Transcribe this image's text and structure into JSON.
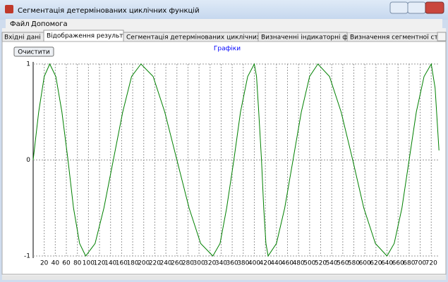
{
  "window": {
    "title": "Сегментація детермінованих циклічних функцій"
  },
  "menu": [
    "Файл",
    "Допомога"
  ],
  "tabs": [
    "Вхідні дані",
    "Відображення результатів",
    "Сегментація детермінованих циклічних функцій",
    "Визначенні індикаторні функції",
    "Визначення сегментної структу"
  ],
  "button": "Очистити",
  "chart_data": {
    "type": "line",
    "title": "Графіки",
    "x": [
      0,
      10,
      20,
      30,
      41,
      52,
      63,
      73,
      84,
      95,
      112,
      128,
      145,
      162,
      178,
      195,
      217,
      238,
      260,
      282,
      303,
      325,
      338,
      350,
      363,
      375,
      388,
      400,
      404,
      408,
      413,
      417,
      421,
      425,
      440,
      455,
      470,
      485,
      500,
      515,
      536,
      557,
      578,
      598,
      619,
      640,
      653,
      667,
      680,
      693,
      707,
      720,
      727,
      734
    ],
    "series": [
      {
        "color": "#008000",
        "values": [
          0,
          0.5,
          0.87,
          1,
          0.87,
          0.5,
          0,
          -0.5,
          -0.87,
          -1,
          -0.87,
          -0.5,
          0,
          0.5,
          0.87,
          1,
          0.87,
          0.5,
          0,
          -0.5,
          -0.87,
          -1,
          -0.87,
          -0.5,
          0,
          0.5,
          0.87,
          1,
          0.87,
          0.5,
          0,
          -0.5,
          -0.87,
          -1,
          -0.87,
          -0.5,
          0,
          0.5,
          0.87,
          1,
          0.87,
          0.5,
          0,
          -0.5,
          -0.87,
          -1,
          -0.87,
          -0.5,
          0,
          0.5,
          0.87,
          1,
          0.75,
          0.1
        ]
      }
    ],
    "xlim": [
      0,
      735
    ],
    "ylim": [
      -1,
      1
    ],
    "xticks": [
      20,
      40,
      60,
      80,
      100,
      120,
      140,
      160,
      180,
      200,
      220,
      240,
      260,
      280,
      300,
      320,
      340,
      360,
      380,
      400,
      420,
      440,
      460,
      480,
      500,
      520,
      540,
      560,
      580,
      600,
      620,
      640,
      660,
      680,
      700,
      720
    ],
    "yticks": [
      -1,
      0,
      1
    ],
    "grid": true
  }
}
